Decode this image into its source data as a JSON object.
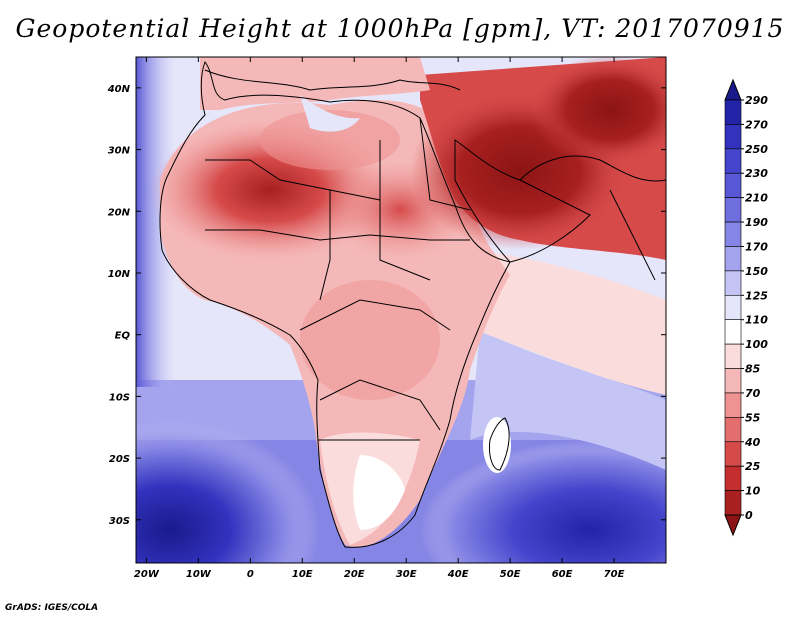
{
  "title": "Geopotential Height at 1000hPa [gpm], VT: 2017070915",
  "credit": "GrADS: IGES/COLA",
  "map": {
    "lat_labels": [
      "40N",
      "30N",
      "20N",
      "10N",
      "EQ",
      "10S",
      "20S",
      "30S"
    ],
    "lat_values": [
      40,
      30,
      20,
      10,
      0,
      -10,
      -20,
      -30
    ],
    "lon_labels": [
      "20W",
      "10W",
      "0",
      "10E",
      "20E",
      "30E",
      "40E",
      "50E",
      "60E",
      "70E"
    ],
    "lon_values": [
      -20,
      -10,
      0,
      10,
      20,
      30,
      40,
      50,
      60,
      70
    ],
    "lat_range": [
      -37,
      45
    ],
    "lon_range": [
      -22,
      80
    ]
  },
  "colorbar": {
    "levels": [
      "290",
      "270",
      "250",
      "230",
      "210",
      "190",
      "170",
      "150",
      "125",
      "110",
      "100",
      "85",
      "70",
      "55",
      "40",
      "25",
      "10",
      "0"
    ],
    "colors": [
      "#1a1a8c",
      "#2323a8",
      "#3232bf",
      "#4444cc",
      "#5858d6",
      "#6e6ede",
      "#8585e5",
      "#a3a3ee",
      "#c4c4f5",
      "#e6e6fb",
      "#ffffff",
      "#fbdcdc",
      "#f5b8b8",
      "#ee9292",
      "#e26e6e",
      "#d64a4a",
      "#c42e2e",
      "#a82020",
      "#8c1414"
    ]
  }
}
